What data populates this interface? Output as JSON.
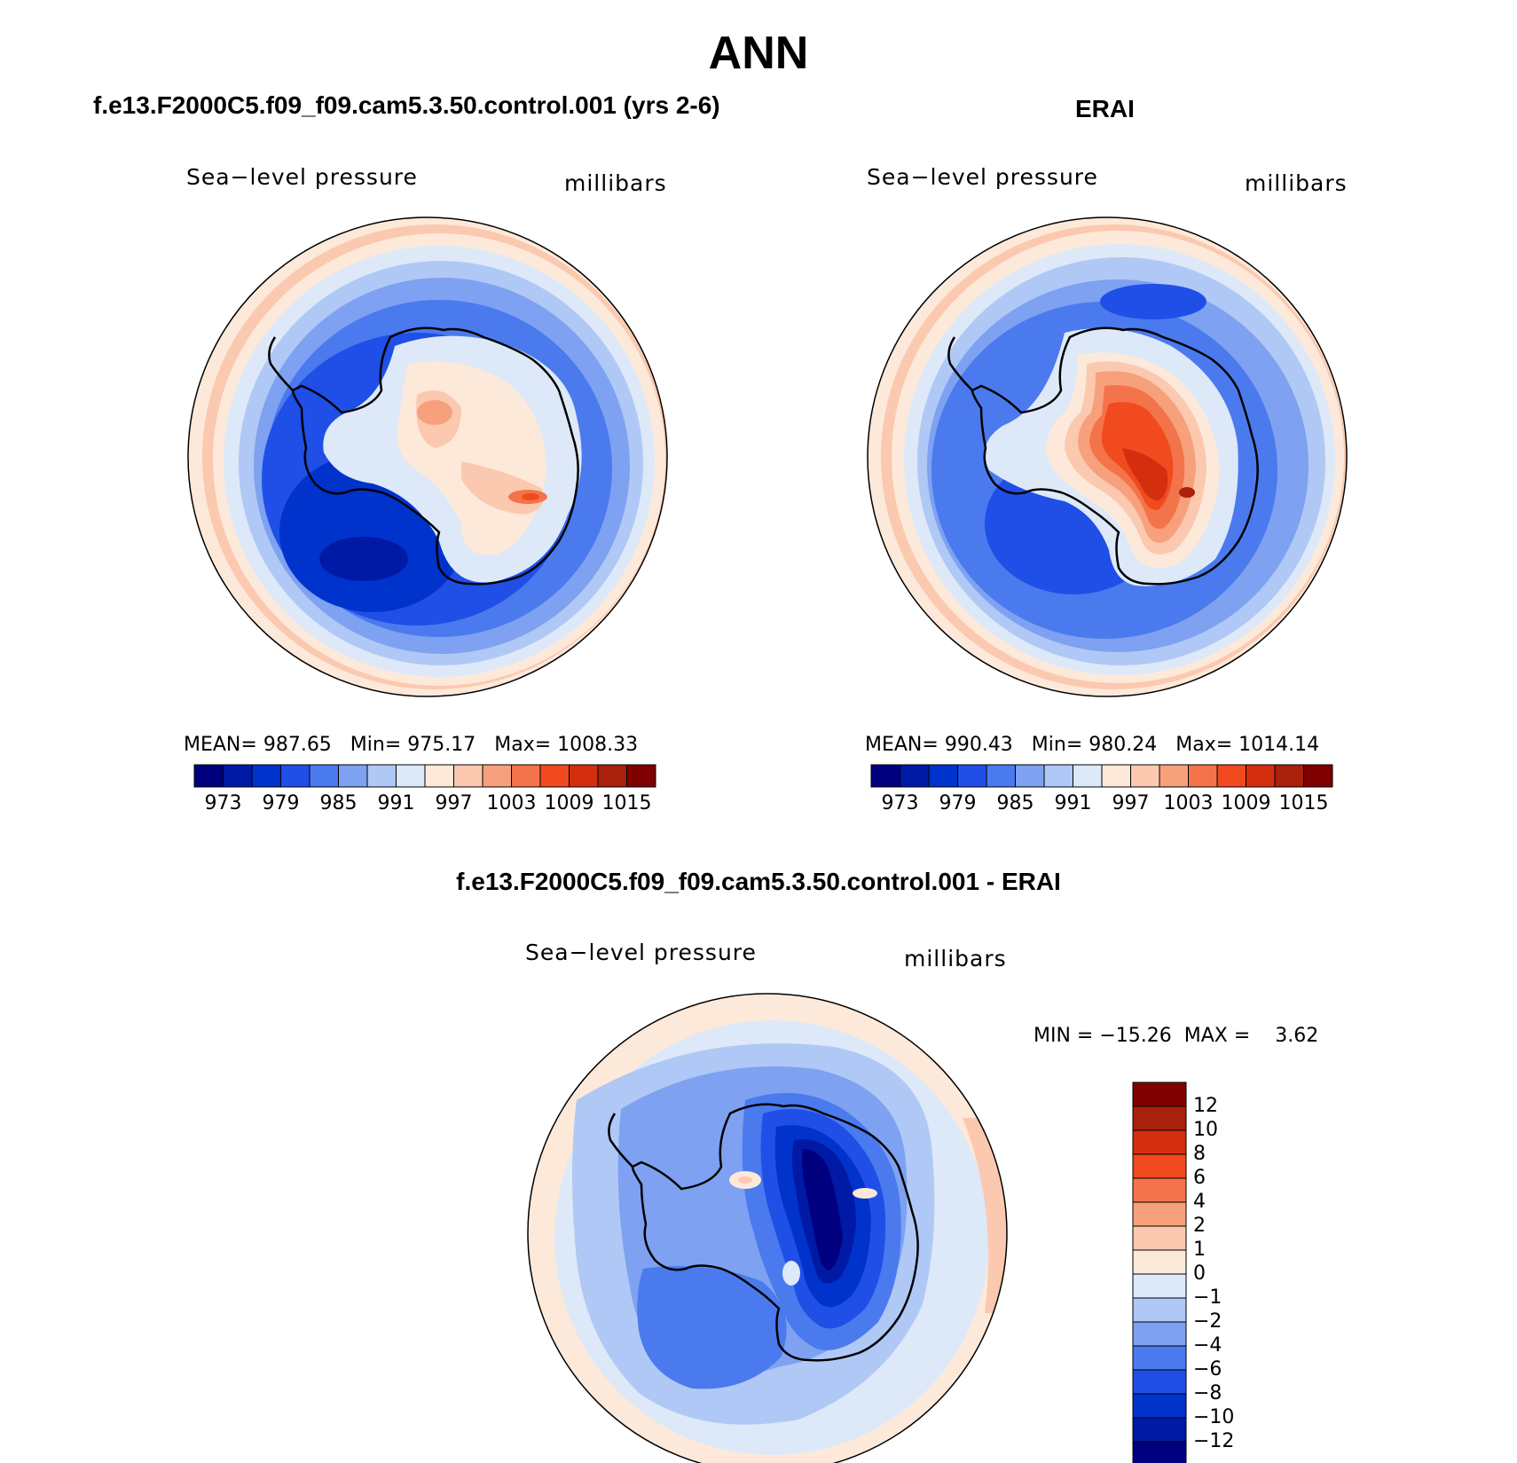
{
  "title": "ANN",
  "palette": [
    "#00007f",
    "#001aa6",
    "#0033cc",
    "#1f4fe6",
    "#4a7aed",
    "#7ea1f1",
    "#b0c8f5",
    "#dde9f8",
    "#fde9d9",
    "#fbc9b0",
    "#f7a07c",
    "#f3734a",
    "#f04a1e",
    "#d32f0f",
    "#a9200b",
    "#7f0000"
  ],
  "panels": {
    "left": {
      "title": "f.e13.F2000C5.f09_f09.cam5.3.50.control.001 (yrs 2-6)",
      "variable": "Sea−level pressure",
      "units": "millibars",
      "stats": {
        "mean_label": "MEAN=",
        "mean": "987.65",
        "min_label": "Min=",
        "min": "975.17",
        "max_label": "Max=",
        "max": "1008.33"
      }
    },
    "right": {
      "title": "ERAI",
      "variable": "Sea−level pressure",
      "units": "millibars",
      "stats": {
        "mean_label": "MEAN=",
        "mean": "990.43",
        "min_label": "Min=",
        "min": "980.24",
        "max_label": "Max=",
        "max": "1014.14"
      }
    },
    "diff": {
      "title": "f.e13.F2000C5.f09_f09.cam5.3.50.control.001 - ERAI",
      "variable": "Sea−level pressure",
      "units": "millibars",
      "minmax_text": "MIN = −15.26  MAX =    3.62"
    }
  },
  "colorbar_ticks": [
    "973",
    "979",
    "985",
    "991",
    "997",
    "1003",
    "1009",
    "1015"
  ],
  "diff_colorbar_ticks": [
    "12",
    "10",
    "8",
    "6",
    "4",
    "2",
    "1",
    "0",
    "−1",
    "−2",
    "−4",
    "−6",
    "−8",
    "−10",
    "−12"
  ]
}
